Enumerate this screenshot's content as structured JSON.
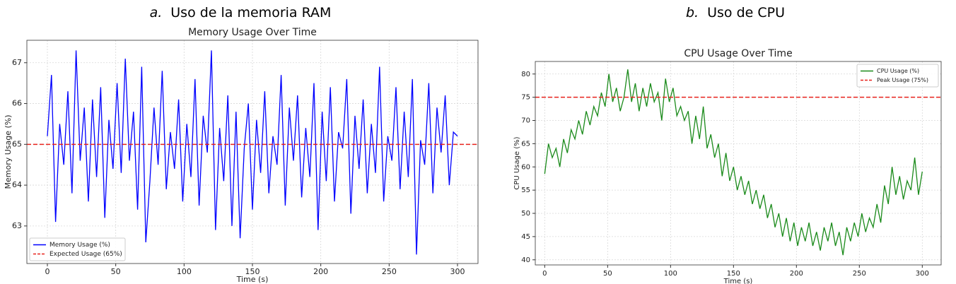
{
  "chart_data": [
    {
      "type": "line",
      "caption_letter": "a.",
      "caption": "Uso de la memoria RAM",
      "title": "Memory Usage Over Time",
      "xlabel": "Time (s)",
      "ylabel": "Memory Usage (%)",
      "xlim": [
        -15,
        315
      ],
      "ylim": [
        62.08,
        67.55
      ],
      "xticks": [
        0,
        50,
        100,
        150,
        200,
        250,
        300
      ],
      "yticks": [
        63,
        64,
        65,
        66,
        67
      ],
      "grid": true,
      "legend": "lower left",
      "x": [
        0,
        3,
        6,
        9,
        12,
        15,
        18,
        21,
        24,
        27,
        30,
        33,
        36,
        39,
        42,
        45,
        48,
        51,
        54,
        57,
        60,
        63,
        66,
        69,
        72,
        75,
        78,
        81,
        84,
        87,
        90,
        93,
        96,
        99,
        102,
        105,
        108,
        111,
        114,
        117,
        120,
        123,
        126,
        129,
        132,
        135,
        138,
        141,
        144,
        147,
        150,
        153,
        156,
        159,
        162,
        165,
        168,
        171,
        174,
        177,
        180,
        183,
        186,
        189,
        192,
        195,
        198,
        201,
        204,
        207,
        210,
        213,
        216,
        219,
        222,
        225,
        228,
        231,
        234,
        237,
        240,
        243,
        246,
        249,
        252,
        255,
        258,
        261,
        264,
        267,
        270,
        273,
        276,
        279,
        282,
        285,
        288,
        291,
        294,
        297,
        300
      ],
      "series": [
        {
          "name": "Memory Usage (%)",
          "color": "#0000ff",
          "values": [
            65.2,
            66.7,
            63.1,
            65.5,
            64.5,
            66.3,
            63.8,
            67.3,
            64.6,
            65.9,
            63.6,
            66.1,
            64.2,
            66.4,
            63.2,
            65.6,
            64.4,
            66.5,
            64.3,
            67.1,
            64.6,
            65.8,
            63.4,
            66.9,
            62.6,
            64.1,
            65.9,
            64.5,
            66.8,
            63.9,
            65.3,
            64.4,
            66.1,
            63.6,
            65.5,
            64.2,
            66.6,
            63.5,
            65.7,
            64.8,
            67.3,
            62.9,
            65.4,
            64.1,
            66.2,
            63.0,
            65.8,
            62.7,
            64.9,
            66.0,
            63.4,
            65.6,
            64.3,
            66.3,
            63.8,
            65.2,
            64.5,
            66.7,
            63.5,
            65.9,
            64.6,
            66.2,
            63.7,
            65.4,
            64.2,
            66.5,
            62.9,
            65.8,
            64.1,
            66.4,
            63.6,
            65.3,
            64.9,
            66.6,
            63.3,
            65.7,
            64.4,
            66.1,
            63.8,
            65.5,
            64.3,
            66.9,
            63.6,
            65.2,
            64.6,
            66.4,
            63.9,
            65.8,
            64.2,
            66.6,
            62.3,
            65.1,
            64.5,
            66.5,
            63.8,
            65.9,
            64.8,
            66.2,
            64.0,
            65.3,
            65.2
          ]
        }
      ],
      "hline": {
        "name": "Expected Usage (65%)",
        "value": 65,
        "color": "#e8221c"
      }
    },
    {
      "type": "line",
      "caption_letter": "b.",
      "caption": "Uso de CPU",
      "title": "CPU Usage Over Time",
      "xlabel": "Time (s)",
      "ylabel": "CPU Usage (%)",
      "xlim": [
        -7.5,
        315
      ],
      "ylim": [
        38.9,
        82.7
      ],
      "xticks": [
        0,
        50,
        100,
        150,
        200,
        250,
        300
      ],
      "yticks": [
        40,
        45,
        50,
        55,
        60,
        65,
        70,
        75,
        80
      ],
      "grid": true,
      "legend": "upper right",
      "x": [
        0,
        3,
        6,
        9,
        12,
        15,
        18,
        21,
        24,
        27,
        30,
        33,
        36,
        39,
        42,
        45,
        48,
        51,
        54,
        57,
        60,
        63,
        66,
        69,
        72,
        75,
        78,
        81,
        84,
        87,
        90,
        93,
        96,
        99,
        102,
        105,
        108,
        111,
        114,
        117,
        120,
        123,
        126,
        129,
        132,
        135,
        138,
        141,
        144,
        147,
        150,
        153,
        156,
        159,
        162,
        165,
        168,
        171,
        174,
        177,
        180,
        183,
        186,
        189,
        192,
        195,
        198,
        201,
        204,
        207,
        210,
        213,
        216,
        219,
        222,
        225,
        228,
        231,
        234,
        237,
        240,
        243,
        246,
        249,
        252,
        255,
        258,
        261,
        264,
        267,
        270,
        273,
        276,
        279,
        282,
        285,
        288,
        291,
        294,
        297,
        300
      ],
      "series": [
        {
          "name": "CPU Usage (%)",
          "color": "#1a8a1a",
          "values": [
            58.5,
            65,
            62,
            64,
            60,
            66,
            63,
            68,
            66,
            70,
            67,
            72,
            69,
            73,
            71,
            76,
            73,
            80,
            74,
            77,
            72,
            75,
            81,
            74,
            78,
            72,
            77,
            73,
            78,
            74,
            76,
            70,
            79,
            74,
            77,
            71,
            73,
            70,
            72,
            65,
            71,
            66,
            73,
            64,
            67,
            62,
            65,
            58,
            63,
            57,
            60,
            55,
            58,
            54,
            57,
            52,
            55,
            51,
            54,
            49,
            52,
            47,
            50,
            45,
            49,
            44,
            48,
            43,
            47,
            44,
            48,
            43,
            46,
            42,
            47,
            44,
            48,
            43,
            46,
            41,
            47,
            44,
            48,
            45,
            50,
            46,
            49,
            47,
            52,
            48,
            56,
            52,
            60,
            54,
            58,
            53,
            57,
            55,
            62,
            54,
            59
          ]
        }
      ],
      "hline": {
        "name": "Peak Usage (75%)",
        "value": 75,
        "color": "#e8221c"
      }
    }
  ]
}
